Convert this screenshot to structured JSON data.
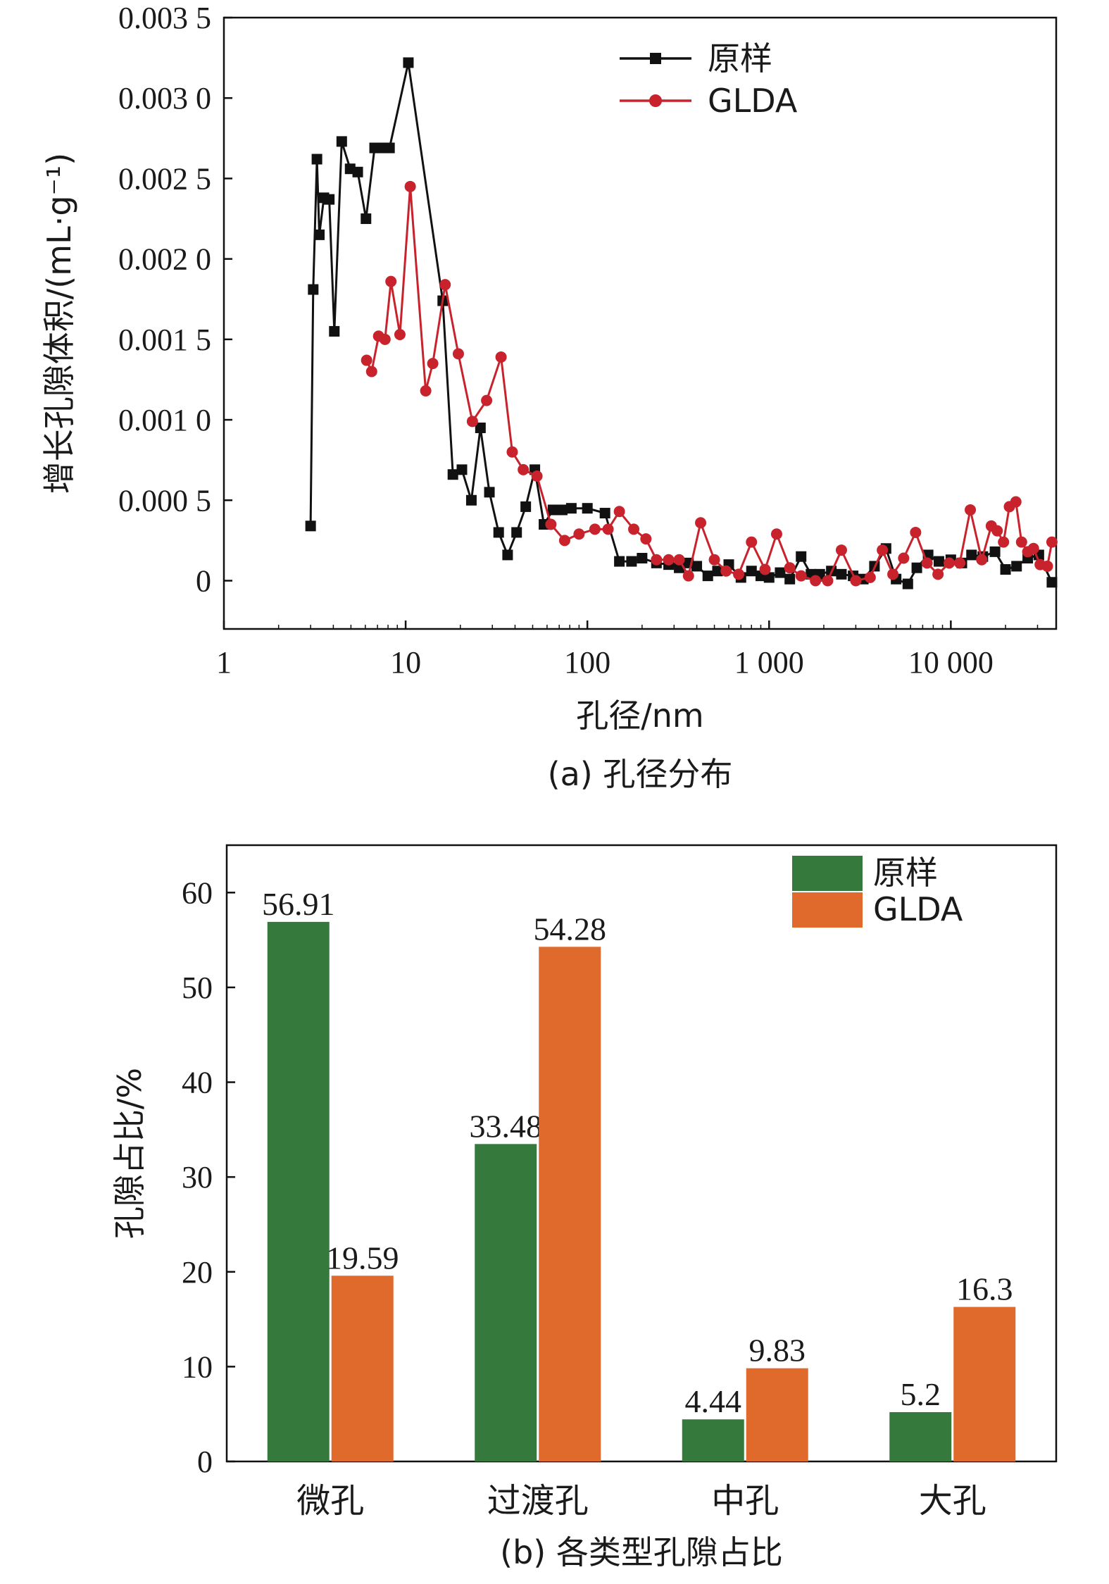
{
  "chart_data": [
    {
      "type": "line",
      "xscale": "log",
      "xlim": [
        1,
        38000
      ],
      "ylim": [
        -0.0003,
        0.0035
      ],
      "xlabel": "孔径/nm",
      "ylabel": "增长孔隙体积/(mL·g⁻¹)",
      "caption": "(a) 孔径分布",
      "x_tick_labels": [
        "1",
        "10",
        "100",
        "1 000",
        "10 000"
      ],
      "x_ticks": [
        1,
        10,
        100,
        1000,
        10000
      ],
      "y_tick_labels": [
        "0",
        "0.000 5",
        "0.001 0",
        "0.001 5",
        "0.002 0",
        "0.002 5",
        "0.003 0",
        "0.003 5"
      ],
      "y_ticks": [
        0,
        0.0005,
        0.001,
        0.0015,
        0.002,
        0.0025,
        0.003,
        0.0035
      ],
      "legend": "top-right",
      "grid": false,
      "series": [
        {
          "name": "原样",
          "color": "#111111",
          "marker": "square",
          "x": [
            3.0,
            3.1,
            3.25,
            3.35,
            3.55,
            3.8,
            4.05,
            4.45,
            4.95,
            5.45,
            6.05,
            6.75,
            7.45,
            8.15,
            10.35,
            16.0,
            18.2,
            20.4,
            23.0,
            25.8,
            28.9,
            32.5,
            36.4,
            40.8,
            45.8,
            51.4,
            57.7,
            64.7,
            72.7,
            81.6,
            100,
            125,
            150,
            175,
            200,
            240,
            280,
            320,
            360,
            400,
            460,
            520,
            600,
            700,
            800,
            900,
            1000,
            1150,
            1300,
            1500,
            1700,
            1900,
            2200,
            2500,
            2900,
            3300,
            3800,
            4400,
            5000,
            5800,
            6500,
            7500,
            8600,
            10000,
            11500,
            13000,
            15000,
            17500,
            20000,
            23000,
            26500,
            30500,
            36000
          ],
          "y": [
            0.00034,
            0.00181,
            0.00262,
            0.00215,
            0.00238,
            0.00237,
            0.00155,
            0.00273,
            0.00256,
            0.00254,
            0.00225,
            0.00269,
            0.00269,
            0.00269,
            0.00322,
            0.00174,
            0.00066,
            0.00069,
            0.0005,
            0.00095,
            0.00055,
            0.0003,
            0.00016,
            0.0003,
            0.00046,
            0.00069,
            0.00035,
            0.00044,
            0.00044,
            0.00045,
            0.00045,
            0.00042,
            0.00012,
            0.00012,
            0.00014,
            0.00011,
            0.0001,
            8e-05,
            0.00011,
            9e-05,
            3e-05,
            6e-05,
            0.0001,
            2e-05,
            6e-05,
            3e-05,
            2e-05,
            5e-05,
            1e-05,
            0.00015,
            4e-05,
            4e-05,
            6e-05,
            4e-05,
            3e-05,
            1e-05,
            9e-05,
            0.0002,
            1e-05,
            -2e-05,
            8e-05,
            0.00016,
            0.00012,
            0.00013,
            0.00011,
            0.00016,
            0.00015,
            0.00018,
            7e-05,
            9e-05,
            0.00014,
            0.00016,
            -1e-05
          ]
        },
        {
          "name": "GLDA",
          "color": "#c8232c",
          "marker": "circle",
          "x": [
            6.1,
            6.5,
            7.1,
            7.7,
            8.3,
            9.3,
            10.6,
            12.9,
            14.1,
            16.5,
            19.5,
            23.3,
            27.9,
            33.5,
            38.6,
            44.4,
            52.8,
            63.0,
            75.0,
            90.0,
            110,
            130,
            150,
            180,
            210,
            240,
            280,
            320,
            360,
            420,
            500,
            580,
            680,
            800,
            950,
            1100,
            1300,
            1500,
            1800,
            2100,
            2500,
            3000,
            3600,
            4200,
            4800,
            5500,
            6400,
            7400,
            8500,
            9800,
            11200,
            12800,
            14800,
            16700,
            18000,
            19500,
            21000,
            22800,
            24500,
            26500,
            28500,
            31000,
            34000,
            36000
          ],
          "y": [
            0.00137,
            0.0013,
            0.00152,
            0.0015,
            0.00186,
            0.00153,
            0.00245,
            0.00118,
            0.00135,
            0.00184,
            0.00141,
            0.00099,
            0.00112,
            0.00139,
            0.0008,
            0.00069,
            0.00065,
            0.00035,
            0.00025,
            0.00029,
            0.00032,
            0.00032,
            0.00043,
            0.00032,
            0.00026,
            0.00013,
            0.00013,
            0.00013,
            3e-05,
            0.00036,
            0.00013,
            6e-05,
            4e-05,
            0.00024,
            7e-05,
            0.00029,
            8e-05,
            3e-05,
            0.0,
            0.0,
            0.00019,
            0.0,
            2e-05,
            0.00019,
            4e-05,
            0.00014,
            0.0003,
            0.00011,
            4e-05,
            0.00011,
            0.00011,
            0.00044,
            0.00013,
            0.00034,
            0.00031,
            0.00024,
            0.00046,
            0.00049,
            0.00024,
            0.00018,
            0.0002,
            0.0001,
            9e-05,
            0.00024
          ]
        }
      ]
    },
    {
      "type": "bar",
      "categories": [
        "微孔",
        "过渡孔",
        "中孔",
        "大孔"
      ],
      "ylim": [
        0,
        65
      ],
      "y_ticks": [
        0,
        10,
        20,
        30,
        40,
        50,
        60
      ],
      "y_tick_labels": [
        "0",
        "10",
        "20",
        "30",
        "40",
        "50",
        "60"
      ],
      "xlabel": "",
      "ylabel": "孔隙占比/%",
      "caption": "(b) 各类型孔隙占比",
      "legend": "top-right",
      "grid": false,
      "series": [
        {
          "name": "原样",
          "color": "#357a3c",
          "values": [
            56.91,
            33.48,
            4.44,
            5.2
          ],
          "labels": [
            "56.91",
            "33.48",
            "4.44",
            "5.2"
          ]
        },
        {
          "name": "GLDA",
          "color": "#e0692c",
          "values": [
            19.59,
            54.28,
            9.83,
            16.3
          ],
          "labels": [
            "19.59",
            "54.28",
            "9.83",
            "16.3"
          ]
        }
      ]
    }
  ]
}
